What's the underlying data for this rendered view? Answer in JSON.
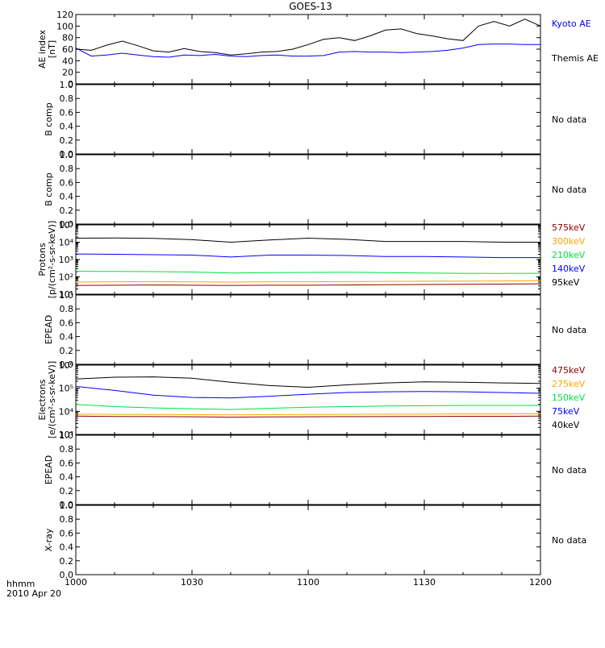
{
  "title": "GOES-13",
  "time_axis": {
    "ticks": [
      "1000",
      "1030",
      "1100",
      "1130",
      "1200"
    ],
    "hhmm_label": "hhmm",
    "date_label": "2010 Apr 20"
  },
  "colors": {
    "black": "#000000",
    "blue": "#0000ff",
    "green": "#00e040",
    "orange": "#ffa500",
    "darkred": "#8b0000"
  },
  "chart_data": [
    {
      "type": "line",
      "panel": "ae",
      "ylabel": [
        "AE index",
        "[nT]"
      ],
      "ylim": [
        0,
        120
      ],
      "yticks": [
        0,
        20,
        40,
        60,
        80,
        100,
        120
      ],
      "x_minutes": [
        0,
        4,
        8,
        12,
        16,
        20,
        24,
        28,
        32,
        36,
        40,
        44,
        48,
        52,
        56,
        60,
        64,
        68,
        72,
        76,
        80,
        84,
        88,
        92,
        96,
        100,
        104,
        108,
        112,
        116,
        120
      ],
      "series": [
        {
          "name": "Kyoto AE",
          "color": "#0000ff",
          "values": [
            62,
            48,
            50,
            53,
            50,
            47,
            46,
            50,
            49,
            51,
            48,
            47,
            49,
            50,
            48,
            48,
            49,
            55,
            56,
            55,
            55,
            54,
            55,
            56,
            58,
            62,
            68,
            69,
            69,
            68,
            68
          ]
        },
        {
          "name": "Themis AE",
          "color": "#000000",
          "values": [
            60,
            58,
            67,
            74,
            66,
            57,
            55,
            61,
            56,
            54,
            50,
            52,
            55,
            56,
            60,
            68,
            77,
            80,
            75,
            83,
            93,
            95,
            87,
            83,
            78,
            75,
            100,
            108,
            100,
            112,
            100
          ]
        }
      ]
    },
    {
      "type": "line",
      "panel": "b1",
      "ylabel": [
        "B comp"
      ],
      "ylim": [
        0,
        1
      ],
      "yticks": [
        0.0,
        0.2,
        0.4,
        0.6,
        0.8,
        1.0
      ],
      "status": "No data"
    },
    {
      "type": "line",
      "panel": "b2",
      "ylabel": [
        "B comp"
      ],
      "ylim": [
        0,
        1
      ],
      "yticks": [
        0.0,
        0.2,
        0.4,
        0.6,
        0.8,
        1.0
      ],
      "status": "No data"
    },
    {
      "type": "line",
      "panel": "protons",
      "scale": "log",
      "ylabel": [
        "Protons",
        "[p/(cm²-s-sr-keV)]"
      ],
      "ylim": [
        10,
        100000
      ],
      "yticks": [
        "10¹",
        "10²",
        "10³",
        "10⁴",
        "10⁵"
      ],
      "x_minutes": [
        0,
        10,
        20,
        30,
        40,
        50,
        60,
        70,
        80,
        90,
        100,
        110,
        120
      ],
      "series": [
        {
          "name": "575keV",
          "color": "#8b0000",
          "values": [
            32,
            33,
            34,
            33,
            32,
            33,
            33,
            34,
            35,
            36,
            37,
            38,
            40
          ]
        },
        {
          "name": "300keV",
          "color": "#ffa500",
          "values": [
            50,
            52,
            53,
            51,
            50,
            52,
            52,
            53,
            55,
            56,
            57,
            58,
            60
          ]
        },
        {
          "name": "210keV",
          "color": "#00e040",
          "values": [
            210,
            205,
            200,
            190,
            165,
            175,
            180,
            185,
            175,
            165,
            160,
            158,
            160
          ]
        },
        {
          "name": "140keV",
          "color": "#0000ff",
          "values": [
            2100,
            2000,
            1900,
            1800,
            1400,
            1800,
            1800,
            1700,
            1500,
            1500,
            1400,
            1300,
            1300
          ]
        },
        {
          "name": "95keV",
          "color": "#000000",
          "values": [
            17000,
            17500,
            16500,
            14000,
            10000,
            13500,
            17000,
            14500,
            11000,
            11000,
            11000,
            10000,
            10000
          ]
        }
      ]
    },
    {
      "type": "line",
      "panel": "epead1",
      "ylabel": [
        "EPEAD"
      ],
      "ylim": [
        0,
        1
      ],
      "yticks": [
        0.0,
        0.2,
        0.4,
        0.6,
        0.8,
        1.0
      ],
      "status": "No data"
    },
    {
      "type": "line",
      "panel": "electrons",
      "scale": "log",
      "ylabel": [
        "Electrons",
        "[e/(cm²-s-sr-keV)]"
      ],
      "ylim": [
        1000,
        1000000
      ],
      "yticks": [
        "10³",
        "10⁴",
        "10⁵",
        "10⁶"
      ],
      "x_minutes": [
        0,
        10,
        20,
        30,
        40,
        50,
        60,
        70,
        80,
        90,
        100,
        110,
        120
      ],
      "series": [
        {
          "name": "475keV",
          "color": "#8b0000",
          "values": [
            6200,
            6000,
            5900,
            5800,
            5600,
            5700,
            5800,
            5900,
            5900,
            6000,
            6100,
            6100,
            6200
          ]
        },
        {
          "name": "275keV",
          "color": "#ffa500",
          "values": [
            7500,
            7400,
            7300,
            7200,
            7000,
            7200,
            7300,
            7400,
            7500,
            7600,
            7700,
            7700,
            7800
          ]
        },
        {
          "name": "150keV",
          "color": "#00e040",
          "values": [
            20000,
            16000,
            14000,
            13000,
            12000,
            13500,
            15000,
            16000,
            17000,
            17500,
            18000,
            18000,
            18000
          ]
        },
        {
          "name": "75keV",
          "color": "#0000ff",
          "values": [
            120000,
            80000,
            50000,
            40000,
            38000,
            45000,
            55000,
            65000,
            70000,
            72000,
            70000,
            65000,
            60000
          ]
        },
        {
          "name": "40keV",
          "color": "#000000",
          "values": [
            250000,
            300000,
            310000,
            270000,
            180000,
            130000,
            110000,
            140000,
            170000,
            190000,
            180000,
            170000,
            160000
          ]
        }
      ]
    },
    {
      "type": "line",
      "panel": "epead2",
      "ylabel": [
        "EPEAD"
      ],
      "ylim": [
        0,
        1
      ],
      "yticks": [
        0.0,
        0.2,
        0.4,
        0.6,
        0.8,
        1.0
      ],
      "status": "No data"
    },
    {
      "type": "line",
      "panel": "xray",
      "ylabel": [
        "X-ray"
      ],
      "ylim": [
        0,
        1
      ],
      "yticks": [
        0.0,
        0.2,
        0.4,
        0.6,
        0.8,
        1.0
      ],
      "status": "No data"
    }
  ]
}
